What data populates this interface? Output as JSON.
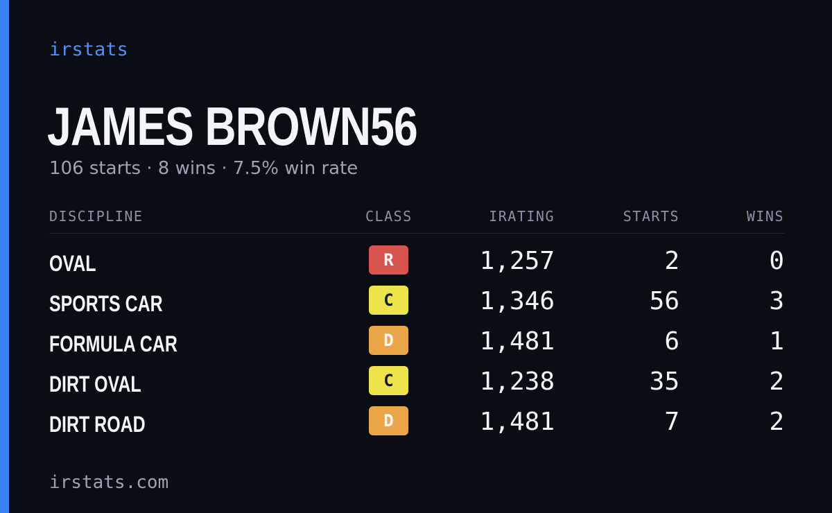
{
  "brand": {
    "name": "irstats",
    "domain": "irstats.com",
    "accent_color": "#3b82f6"
  },
  "profile": {
    "name": "JAMES BROWN56",
    "summary": "106 starts · 8 wins · 7.5% win rate"
  },
  "table": {
    "headers": {
      "discipline": "DISCIPLINE",
      "class": "CLASS",
      "irating": "IRATING",
      "starts": "STARTS",
      "wins": "WINS"
    },
    "rows": [
      {
        "discipline": "OVAL",
        "class": "R",
        "class_bg": "#d9534f",
        "class_fg": "#ffffff",
        "irating": "1,257",
        "starts": "2",
        "wins": "0"
      },
      {
        "discipline": "SPORTS CAR",
        "class": "C",
        "class_bg": "#ece44a",
        "class_fg": "#1c1c1c",
        "irating": "1,346",
        "starts": "56",
        "wins": "3"
      },
      {
        "discipline": "FORMULA CAR",
        "class": "D",
        "class_bg": "#eba64a",
        "class_fg": "#ffffff",
        "irating": "1,481",
        "starts": "6",
        "wins": "1"
      },
      {
        "discipline": "DIRT OVAL",
        "class": "C",
        "class_bg": "#ece44a",
        "class_fg": "#1c1c1c",
        "irating": "1,238",
        "starts": "35",
        "wins": "2"
      },
      {
        "discipline": "DIRT ROAD",
        "class": "D",
        "class_bg": "#eba64a",
        "class_fg": "#ffffff",
        "irating": "1,481",
        "starts": "7",
        "wins": "2"
      }
    ]
  }
}
